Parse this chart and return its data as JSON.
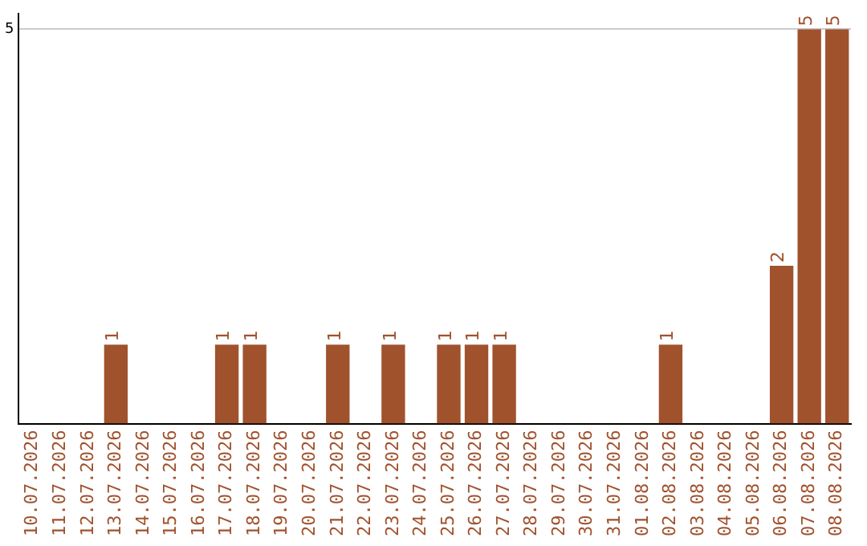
{
  "chart_data": {
    "type": "bar",
    "categories": [
      "10.07.2026",
      "11.07.2026",
      "12.07.2026",
      "13.07.2026",
      "14.07.2026",
      "15.07.2026",
      "16.07.2026",
      "17.07.2026",
      "18.07.2026",
      "19.07.2026",
      "20.07.2026",
      "21.07.2026",
      "22.07.2026",
      "23.07.2026",
      "24.07.2026",
      "25.07.2026",
      "26.07.2026",
      "27.07.2026",
      "28.07.2026",
      "29.07.2026",
      "30.07.2026",
      "31.07.2026",
      "01.08.2026",
      "02.08.2026",
      "03.08.2026",
      "04.08.2026",
      "05.08.2026",
      "06.08.2026",
      "07.08.2026",
      "08.08.2026"
    ],
    "values": [
      0,
      0,
      0,
      1,
      0,
      0,
      0,
      1,
      1,
      0,
      0,
      1,
      0,
      1,
      0,
      1,
      1,
      1,
      0,
      0,
      0,
      0,
      0,
      1,
      0,
      0,
      0,
      2,
      5,
      5
    ],
    "value_labels": [
      null,
      null,
      null,
      "1",
      null,
      null,
      null,
      "1",
      "1",
      null,
      null,
      "1",
      null,
      "1",
      null,
      "1",
      "1",
      "1",
      null,
      null,
      null,
      null,
      null,
      "1",
      null,
      null,
      null,
      "2",
      "5",
      "5"
    ],
    "color": "#a0522d",
    "ylim": [
      0,
      5.2
    ],
    "yticks": [
      5
    ],
    "grid": "y",
    "legend": false
  }
}
